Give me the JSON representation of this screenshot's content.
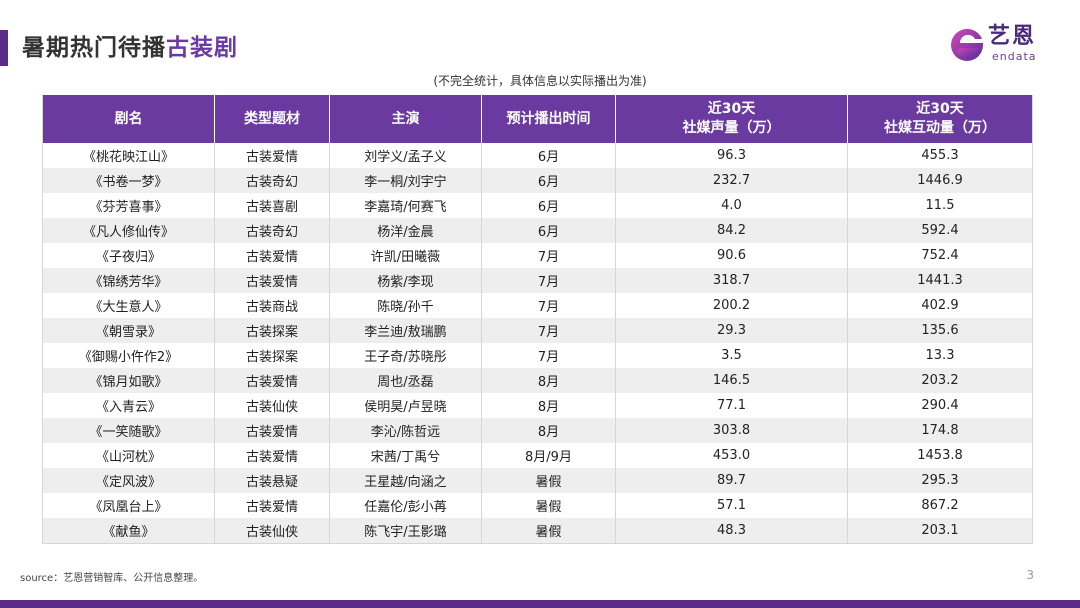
{
  "header": {
    "title_prefix": "暑期热门待播",
    "title_highlight": "古装剧"
  },
  "logo": {
    "name_cn": "艺恩",
    "name_en": "endata",
    "icon": "endata-logo-icon"
  },
  "note": "(不完全统计，具体信息以实际播出为准)",
  "table": {
    "headers": [
      {
        "line1": "剧名",
        "line2": ""
      },
      {
        "line1": "类型题材",
        "line2": ""
      },
      {
        "line1": "主演",
        "line2": ""
      },
      {
        "line1": "预计播出时间",
        "line2": ""
      },
      {
        "line1": "近30天",
        "line2": "社媒声量（万）"
      },
      {
        "line1": "近30天",
        "line2": "社媒互动量（万）"
      }
    ],
    "rows": [
      [
        "《桃花映江山》",
        "古装爱情",
        "刘学义/孟子义",
        "6月",
        "96.3",
        "455.3"
      ],
      [
        "《书卷一梦》",
        "古装奇幻",
        "李一桐/刘宇宁",
        "6月",
        "232.7",
        "1446.9"
      ],
      [
        "《芬芳喜事》",
        "古装喜剧",
        "李嘉琦/何赛飞",
        "6月",
        "4.0",
        "11.5"
      ],
      [
        "《凡人修仙传》",
        "古装奇幻",
        "杨洋/金晨",
        "6月",
        "84.2",
        "592.4"
      ],
      [
        "《子夜归》",
        "古装爱情",
        "许凯/田曦薇",
        "7月",
        "90.6",
        "752.4"
      ],
      [
        "《锦绣芳华》",
        "古装爱情",
        "杨紫/李现",
        "7月",
        "318.7",
        "1441.3"
      ],
      [
        "《大生意人》",
        "古装商战",
        "陈晓/孙千",
        "7月",
        "200.2",
        "402.9"
      ],
      [
        "《朝雪录》",
        "古装探案",
        "李兰迪/敖瑞鹏",
        "7月",
        "29.3",
        "135.6"
      ],
      [
        "《御赐小仵作2》",
        "古装探案",
        "王子奇/苏晓彤",
        "7月",
        "3.5",
        "13.3"
      ],
      [
        "《锦月如歌》",
        "古装爱情",
        "周也/丞磊",
        "8月",
        "146.5",
        "203.2"
      ],
      [
        "《入青云》",
        "古装仙侠",
        "侯明昊/卢昱晓",
        "8月",
        "77.1",
        "290.4"
      ],
      [
        "《一笑随歌》",
        "古装爱情",
        "李沁/陈哲远",
        "8月",
        "303.8",
        "174.8"
      ],
      [
        "《山河枕》",
        "古装爱情",
        "宋茜/丁禹兮",
        "8月/9月",
        "453.0",
        "1453.8"
      ],
      [
        "《定风波》",
        "古装悬疑",
        "王星越/向涵之",
        "暑假",
        "89.7",
        "295.3"
      ],
      [
        "《凤凰台上》",
        "古装爱情",
        "任嘉伦/彭小苒",
        "暑假",
        "57.1",
        "867.2"
      ],
      [
        "《献鱼》",
        "古装仙侠",
        "陈飞宇/王影璐",
        "暑假",
        "48.3",
        "203.1"
      ]
    ]
  },
  "footer": {
    "source": "source：艺恩营销智库、公开信息整理。",
    "page": "3"
  },
  "colors": {
    "accent": "#6b3aa0",
    "accent_dark": "#5b2a8a",
    "row_alt": "#eeeeee"
  }
}
